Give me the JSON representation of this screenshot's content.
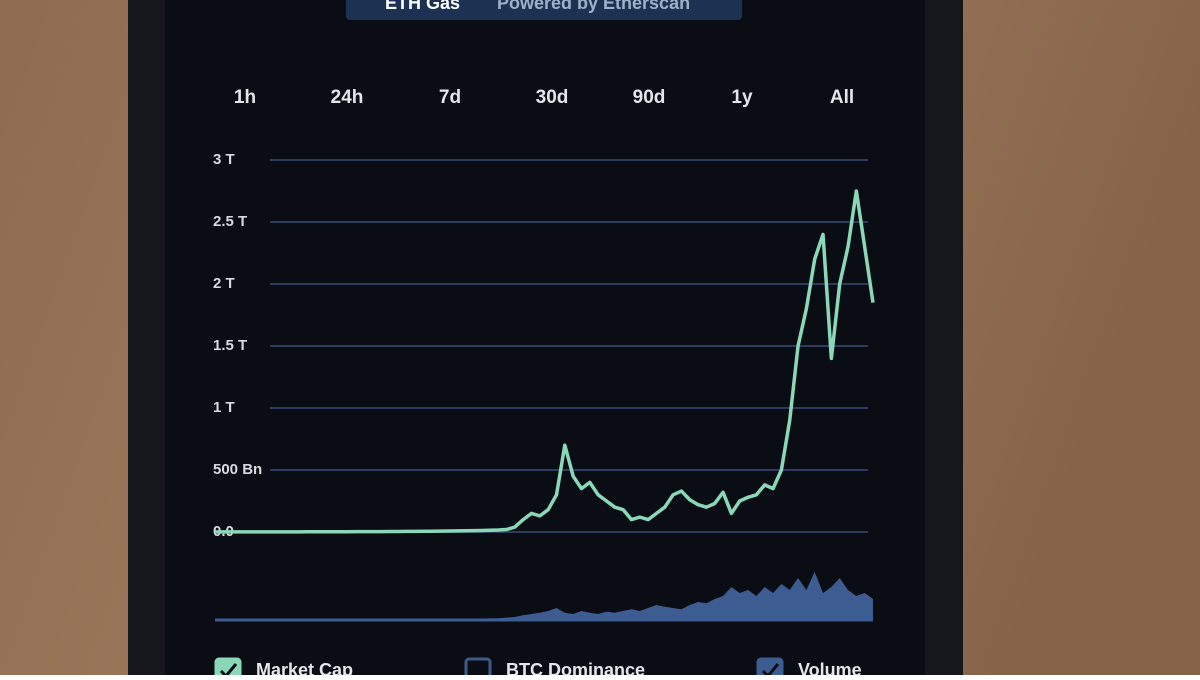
{
  "header": {
    "title": "ETH Gas",
    "subtitle": "Powered by Etherscan"
  },
  "range_options": [
    "1h",
    "24h",
    "7d",
    "30d",
    "90d",
    "1y",
    "All"
  ],
  "chart_data": {
    "type": "line",
    "ylim": [
      0,
      3000
    ],
    "yticks": [
      {
        "value": 0,
        "label": "0.0"
      },
      {
        "value": 500,
        "label": "500 Bn"
      },
      {
        "value": 1000,
        "label": "1 T"
      },
      {
        "value": 1500,
        "label": "1.5 T"
      },
      {
        "value": 2000,
        "label": "2 T"
      },
      {
        "value": 2500,
        "label": "2.5 T"
      },
      {
        "value": 3000,
        "label": "3 T"
      }
    ],
    "y2lim": [
      0,
      100
    ],
    "grid": true,
    "series": [
      {
        "name": "Market Cap",
        "color": "#8ad8b8",
        "checked": true,
        "values": [
          0,
          1,
          1,
          1,
          1,
          1,
          1,
          1,
          1,
          1,
          1,
          2,
          2,
          2,
          2,
          2,
          2,
          3,
          3,
          3,
          3,
          4,
          4,
          5,
          5,
          6,
          6,
          7,
          8,
          9,
          10,
          11,
          12,
          14,
          16,
          20,
          40,
          100,
          150,
          130,
          180,
          300,
          700,
          450,
          350,
          400,
          300,
          250,
          200,
          180,
          100,
          120,
          100,
          150,
          200,
          300,
          330,
          260,
          220,
          200,
          230,
          320,
          150,
          250,
          280,
          300,
          380,
          350,
          500,
          900,
          1500,
          1800,
          2200,
          2400,
          1400,
          2000,
          2300,
          2750,
          2300,
          1850
        ]
      },
      {
        "name": "BTC Dominance",
        "color": "#3c5a8c",
        "checked": false,
        "values": [
          null,
          null,
          null,
          null,
          null,
          null,
          null,
          null,
          null,
          null,
          null,
          null,
          null,
          null,
          null,
          null,
          null,
          null,
          null,
          null,
          null,
          null,
          null,
          null,
          null,
          null,
          null,
          null,
          null,
          null,
          null,
          null,
          null,
          null,
          null,
          null,
          null,
          null,
          null,
          null,
          null,
          null,
          null,
          null,
          null,
          null,
          null,
          null,
          null,
          null,
          null,
          null,
          null,
          null,
          null,
          null,
          null,
          null,
          null,
          null,
          null,
          null,
          null,
          null,
          null,
          null,
          null,
          null,
          null,
          null,
          null,
          null,
          null,
          null,
          null,
          null,
          null,
          null,
          null,
          null
        ]
      },
      {
        "name": "Volume",
        "color": "#3d5c92",
        "checked": true,
        "axis": "y2",
        "values": [
          1,
          1,
          1,
          1,
          1,
          1,
          1,
          1,
          1,
          1,
          1,
          1,
          1,
          1,
          1,
          1,
          1,
          1,
          1,
          1,
          1,
          1,
          1,
          1,
          1,
          1,
          1,
          1,
          1,
          2,
          2,
          2,
          2,
          3,
          3,
          4,
          5,
          8,
          10,
          12,
          15,
          20,
          12,
          10,
          15,
          12,
          10,
          14,
          12,
          15,
          18,
          15,
          20,
          25,
          22,
          20,
          18,
          25,
          30,
          28,
          35,
          40,
          55,
          45,
          50,
          40,
          55,
          45,
          60,
          50,
          70,
          50,
          80,
          45,
          55,
          70,
          50,
          40,
          45,
          35
        ]
      }
    ]
  }
}
